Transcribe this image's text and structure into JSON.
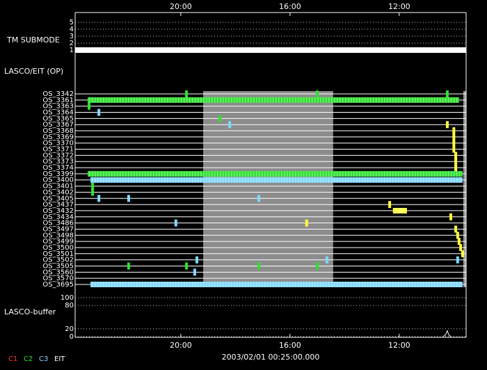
{
  "chart_data": {
    "type": "timeline",
    "xlim": [
      23.87,
      9.55
    ],
    "xticks": [
      {
        "value": 20,
        "label": "20:00"
      },
      {
        "value": 16,
        "label": "16:00"
      },
      {
        "value": 12,
        "label": "12:00"
      }
    ],
    "date_label": "2003/02/01 00:25:00.000",
    "legend": [
      {
        "name": "C1",
        "color": "#ff3030"
      },
      {
        "name": "C2",
        "color": "#30e030"
      },
      {
        "name": "C3",
        "color": "#80d8ff"
      },
      {
        "name": "EIT",
        "color": "#ffffff"
      }
    ],
    "submode": {
      "label": "TM SUBMODE",
      "ylim": [
        1,
        5
      ],
      "yticks": [
        5,
        4,
        3,
        2,
        1
      ],
      "segments": [
        {
          "start": 23.87,
          "end": 9.55,
          "value": 1
        }
      ]
    },
    "ops": {
      "label": "LASCO/EIT (OP)",
      "shaded": [
        19.18,
        14.42
      ],
      "rows": [
        {
          "name": "OS_3342",
          "events": [
            {
              "t": 19.79,
              "color": "#30e030"
            },
            {
              "t": 15.0,
              "color": "#30e030"
            },
            {
              "t": 10.24,
              "color": "#30e030"
            }
          ]
        },
        {
          "name": "OS_3361",
          "spans": [
            {
              "start": 23.41,
              "end": 9.81,
              "color": "#30e030"
            }
          ]
        },
        {
          "name": "OS_3363",
          "events": [
            {
              "t": 23.36,
              "color": "#30e030"
            }
          ]
        },
        {
          "name": "OS_3364",
          "events": [
            {
              "t": 23.0,
              "color": "#80d8ff"
            }
          ]
        },
        {
          "name": "OS_3365",
          "events": [
            {
              "t": 18.57,
              "color": "#30e030"
            }
          ]
        },
        {
          "name": "OS_3367",
          "events": [
            {
              "t": 18.21,
              "color": "#80d8ff"
            },
            {
              "t": 10.24,
              "color": "#ffff40"
            }
          ]
        },
        {
          "name": "OS_3368",
          "events": [
            {
              "t": 10.0,
              "color": "#ffff40"
            }
          ]
        },
        {
          "name": "OS_3369",
          "events": [
            {
              "t": 10.0,
              "color": "#ffff40"
            }
          ]
        },
        {
          "name": "OS_3370",
          "events": [
            {
              "t": 10.0,
              "color": "#ffff40"
            }
          ]
        },
        {
          "name": "OS_3371",
          "events": [
            {
              "t": 10.0,
              "color": "#ffff40"
            }
          ]
        },
        {
          "name": "OS_3372",
          "events": [
            {
              "t": 9.93,
              "color": "#ffff40"
            }
          ]
        },
        {
          "name": "OS_3373",
          "events": [
            {
              "t": 9.93,
              "color": "#ffff40"
            }
          ]
        },
        {
          "name": "OS_3374",
          "events": [
            {
              "t": 9.93,
              "color": "#ffff40"
            }
          ]
        },
        {
          "name": "OS_3399",
          "spans": [
            {
              "start": 23.41,
              "end": 9.68,
              "color": "#30e030"
            }
          ]
        },
        {
          "name": "OS_3400",
          "spans": [
            {
              "start": 23.31,
              "end": 9.68,
              "color": "#80d8ff"
            }
          ]
        },
        {
          "name": "OS_3401",
          "events": [
            {
              "t": 23.23,
              "color": "#30e030"
            }
          ]
        },
        {
          "name": "OS_3402",
          "events": [
            {
              "t": 23.23,
              "color": "#30e030"
            }
          ]
        },
        {
          "name": "OS_3405",
          "events": [
            {
              "t": 23.0,
              "color": "#80d8ff"
            },
            {
              "t": 21.91,
              "color": "#80d8ff"
            },
            {
              "t": 17.14,
              "color": "#80d8ff"
            }
          ]
        },
        {
          "name": "OS_3437",
          "events": [
            {
              "t": 12.35,
              "color": "#ffff40"
            }
          ]
        },
        {
          "name": "OS_3432",
          "spans": [
            {
              "start": 12.23,
              "end": 11.72,
              "color": "#ffff40"
            }
          ]
        },
        {
          "name": "OS_3434",
          "events": [
            {
              "t": 10.11,
              "color": "#ffff40"
            }
          ]
        },
        {
          "name": "OS_3486",
          "events": [
            {
              "t": 20.18,
              "color": "#80d8ff"
            },
            {
              "t": 15.39,
              "color": "#ffff40"
            }
          ]
        },
        {
          "name": "OS_3497",
          "events": [
            {
              "t": 9.93,
              "color": "#ffff40"
            }
          ]
        },
        {
          "name": "OS_3498",
          "events": [
            {
              "t": 9.86,
              "color": "#ffff40"
            }
          ]
        },
        {
          "name": "OS_3499",
          "events": [
            {
              "t": 9.81,
              "color": "#ffff40"
            }
          ]
        },
        {
          "name": "OS_3500",
          "events": [
            {
              "t": 9.75,
              "color": "#ffff40"
            }
          ]
        },
        {
          "name": "OS_3501",
          "events": [
            {
              "t": 9.68,
              "color": "#ffff40"
            }
          ]
        },
        {
          "name": "OS_3502",
          "events": [
            {
              "t": 19.41,
              "color": "#80d8ff"
            },
            {
              "t": 14.65,
              "color": "#80d8ff"
            },
            {
              "t": 9.86,
              "color": "#80d8ff"
            }
          ]
        },
        {
          "name": "OS_3505",
          "events": [
            {
              "t": 21.91,
              "color": "#30e030"
            },
            {
              "t": 19.79,
              "color": "#30e030"
            },
            {
              "t": 17.14,
              "color": "#30e030"
            },
            {
              "t": 15.0,
              "color": "#30e030"
            }
          ]
        },
        {
          "name": "OS_3560",
          "events": [
            {
              "t": 19.49,
              "color": "#80d8ff"
            }
          ]
        },
        {
          "name": "OS_3570"
        },
        {
          "name": "OS_3695",
          "spans": [
            {
              "start": 23.31,
              "end": 9.68,
              "color": "#80d8ff"
            }
          ]
        }
      ]
    },
    "buffer": {
      "label": "LASCO-buffer",
      "ylim": [
        0,
        100
      ],
      "yticks": [
        100,
        80,
        20,
        0
      ],
      "x": [
        10.4,
        10.3,
        10.24,
        10.18,
        10.1
      ],
      "values": [
        0,
        5,
        15,
        4,
        0
      ]
    }
  }
}
